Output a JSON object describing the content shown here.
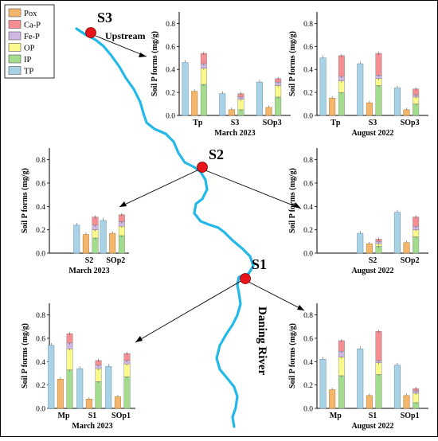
{
  "figure": {
    "river_name": "Daning River",
    "upstream_label": "Upstream"
  },
  "legend": [
    {
      "key": "Pox",
      "label": "Pox",
      "color": "#f4b66b"
    },
    {
      "key": "CaP",
      "label": "Ca-P",
      "color": "#f58f93"
    },
    {
      "key": "FeP",
      "label": "Fe-P",
      "color": "#cfb6e3"
    },
    {
      "key": "OP",
      "label": "OP",
      "color": "#fafa8c"
    },
    {
      "key": "IP",
      "label": "IP",
      "color": "#a4dc8e"
    },
    {
      "key": "TP",
      "label": "TP",
      "color": "#a8d2e6"
    }
  ],
  "sites": [
    {
      "key": "S3",
      "label": "S3"
    },
    {
      "key": "S2",
      "label": "S2"
    },
    {
      "key": "S1",
      "label": "S1"
    }
  ],
  "chart_data": [
    {
      "id": "s3-march",
      "type": "bar",
      "title": "March 2023",
      "ylabel": "Soil P forms (mg/g)",
      "ylim": [
        0,
        0.9
      ],
      "yticks": [
        0.0,
        0.2,
        0.4,
        0.6,
        0.8
      ],
      "categories": [
        "Tp",
        "S3",
        "SOp3"
      ],
      "groups": [
        {
          "TP": 0.46,
          "Pox": 0.21,
          "IP": 0.27,
          "OP": 0.14,
          "FeP": 0.04,
          "CaP": 0.09
        },
        {
          "TP": 0.19,
          "Pox": 0.05,
          "IP": 0.05,
          "OP": 0.09,
          "FeP": 0.02,
          "CaP": 0.03
        },
        {
          "TP": 0.29,
          "Pox": 0.07,
          "IP": 0.16,
          "OP": 0.1,
          "FeP": 0.03,
          "CaP": 0.03
        }
      ]
    },
    {
      "id": "s3-august",
      "type": "bar",
      "title": "August 2022",
      "ylabel": "Soil P forms (mg/g)",
      "ylim": [
        0,
        0.9
      ],
      "yticks": [
        0.0,
        0.2,
        0.4,
        0.6,
        0.8
      ],
      "categories": [
        "Tp",
        "S3",
        "SOp3"
      ],
      "groups": [
        {
          "TP": 0.5,
          "Pox": 0.15,
          "IP": 0.2,
          "OP": 0.1,
          "FeP": 0.04,
          "CaP": 0.18
        },
        {
          "TP": 0.45,
          "Pox": 0.11,
          "IP": 0.26,
          "OP": 0.06,
          "FeP": 0.03,
          "CaP": 0.19
        },
        {
          "TP": 0.24,
          "Pox": 0.05,
          "IP": 0.1,
          "OP": 0.06,
          "FeP": 0.02,
          "CaP": 0.05
        }
      ]
    },
    {
      "id": "s2-march",
      "type": "bar",
      "title": "March 2023",
      "ylabel": "Soil P forms (mg/g)",
      "ylim": [
        0,
        0.9
      ],
      "yticks": [
        0.0,
        0.2,
        0.4,
        0.6,
        0.8
      ],
      "categories": [
        "",
        "S2",
        "SOp2"
      ],
      "groups": [
        null,
        {
          "TP": 0.24,
          "Pox": 0.16,
          "IP": 0.13,
          "OP": 0.07,
          "FeP": 0.04,
          "CaP": 0.07
        },
        {
          "TP": 0.28,
          "Pox": 0.17,
          "IP": 0.15,
          "OP": 0.08,
          "FeP": 0.04,
          "CaP": 0.06
        }
      ]
    },
    {
      "id": "s2-august",
      "type": "bar",
      "title": "August 2022",
      "ylabel": "Soil P forms (mg/g)",
      "ylim": [
        0,
        0.9
      ],
      "yticks": [
        0.0,
        0.2,
        0.4,
        0.6,
        0.8
      ],
      "categories": [
        "",
        "S2",
        "SOp2"
      ],
      "groups": [
        null,
        {
          "TP": 0.17,
          "Pox": 0.08,
          "IP": 0.06,
          "OP": 0.02,
          "FeP": 0.02,
          "CaP": 0.02
        },
        {
          "TP": 0.35,
          "Pox": 0.09,
          "IP": 0.14,
          "OP": 0.06,
          "FeP": 0.03,
          "CaP": 0.08
        }
      ]
    },
    {
      "id": "s1-march",
      "type": "bar",
      "title": "March 2023",
      "ylabel": "Soil P forms (mg/g)",
      "ylim": [
        0,
        0.9
      ],
      "yticks": [
        0.0,
        0.2,
        0.4,
        0.6,
        0.8
      ],
      "categories": [
        "Mp",
        "S1",
        "SOp1"
      ],
      "groups": [
        {
          "TP": 0.54,
          "Pox": 0.25,
          "IP": 0.33,
          "OP": 0.18,
          "FeP": 0.05,
          "CaP": 0.08
        },
        {
          "TP": 0.34,
          "Pox": 0.08,
          "IP": 0.23,
          "OP": 0.11,
          "FeP": 0.03,
          "CaP": 0.04
        },
        {
          "TP": 0.36,
          "Pox": 0.1,
          "IP": 0.27,
          "OP": 0.11,
          "FeP": 0.03,
          "CaP": 0.06
        }
      ]
    },
    {
      "id": "s1-august",
      "type": "bar",
      "title": "August 2022",
      "ylabel": "Soil P forms (mg/g)",
      "ylim": [
        0,
        0.9
      ],
      "yticks": [
        0.0,
        0.2,
        0.4,
        0.6,
        0.8
      ],
      "categories": [
        "Mp",
        "S1",
        "SOp1"
      ],
      "groups": [
        {
          "TP": 0.42,
          "Pox": 0.16,
          "IP": 0.28,
          "OP": 0.16,
          "FeP": 0.05,
          "CaP": 0.09
        },
        {
          "TP": 0.51,
          "Pox": 0.11,
          "IP": 0.29,
          "OP": 0.1,
          "FeP": 0.02,
          "CaP": 0.25
        },
        {
          "TP": 0.37,
          "Pox": 0.11,
          "IP": 0.05,
          "OP": 0.08,
          "FeP": 0.02,
          "CaP": 0.02
        }
      ]
    }
  ]
}
